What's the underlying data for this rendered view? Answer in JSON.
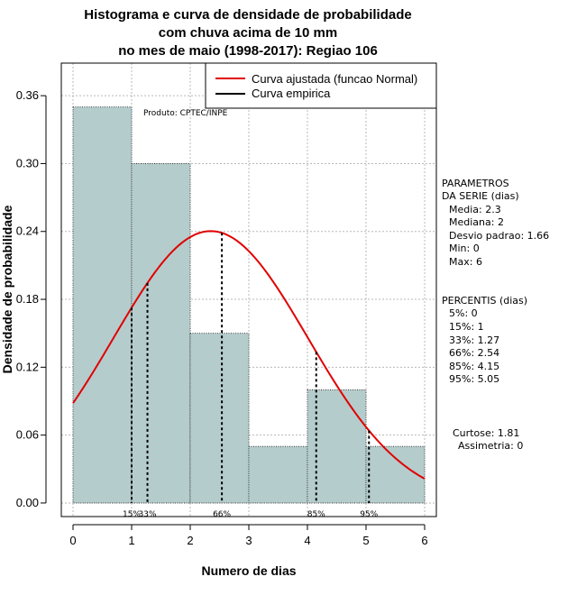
{
  "chart_data": {
    "type": "bar",
    "title_lines": [
      "Histograma e curva de densidade de probabilidade",
      "com chuva acima de 10 mm",
      "no mes de maio (1998-2017): Regiao 106"
    ],
    "xlabel": "Numero de dias",
    "ylabel": "Densidade de probabilidade",
    "xlim": [
      -0.2,
      6.2
    ],
    "ylim": [
      -0.012,
      0.3888
    ],
    "x_ticks": [
      0,
      1,
      2,
      3,
      4,
      5,
      6
    ],
    "x_tick_labels": [
      "0",
      "1",
      "2",
      "3",
      "4",
      "5",
      "6"
    ],
    "y_ticks": [
      0.0,
      0.06,
      0.12,
      0.18,
      0.24,
      0.3,
      0.36
    ],
    "y_tick_labels": [
      "0.00",
      "0.06",
      "0.12",
      "0.18",
      "0.24",
      "0.30",
      "0.36"
    ],
    "grid": true,
    "bins": [
      {
        "start": 0,
        "end": 1,
        "density": 0.35
      },
      {
        "start": 1,
        "end": 2,
        "density": 0.3
      },
      {
        "start": 2,
        "end": 3,
        "density": 0.15
      },
      {
        "start": 3,
        "end": 4,
        "density": 0.05
      },
      {
        "start": 4,
        "end": 5,
        "density": 0.1
      },
      {
        "start": 5,
        "end": 6,
        "density": 0.05
      }
    ],
    "bar_color": "#b5cccc",
    "normal_curve": {
      "name": "Curva ajustada (funcao Normal)",
      "mean": 2.35,
      "sd": 1.66,
      "color": "#e00000",
      "x_range": [
        0,
        6
      ]
    },
    "empirical_curve": {
      "name": "Curva empirica",
      "color": "#000000"
    },
    "percentile_markers": [
      {
        "label": "15%",
        "x": 1.0
      },
      {
        "label": "33%",
        "x": 1.27
      },
      {
        "label": "66%",
        "x": 2.54
      },
      {
        "label": "85%",
        "x": 4.15
      },
      {
        "label": "95%",
        "x": 5.05
      }
    ],
    "legend_position": "top-right",
    "credit": "Produto: CPTEC/INPE"
  },
  "side_panel": {
    "params_title": [
      "PARAMETROS",
      "DA SERIE (dias)"
    ],
    "params": [
      "Media: 2.3",
      "Mediana: 2",
      "Desvio padrao: 1.66",
      "Min: 0",
      "Max: 6"
    ],
    "percentis_title": "PERCENTIS (dias)",
    "percentis": [
      "5%: 0",
      "15%: 1",
      "33%: 1.27",
      "66%: 2.54",
      "85%: 4.15",
      "95%: 5.05"
    ],
    "curtose": "Curtose: 1.81",
    "assimetria": "Assimetria: 0"
  }
}
